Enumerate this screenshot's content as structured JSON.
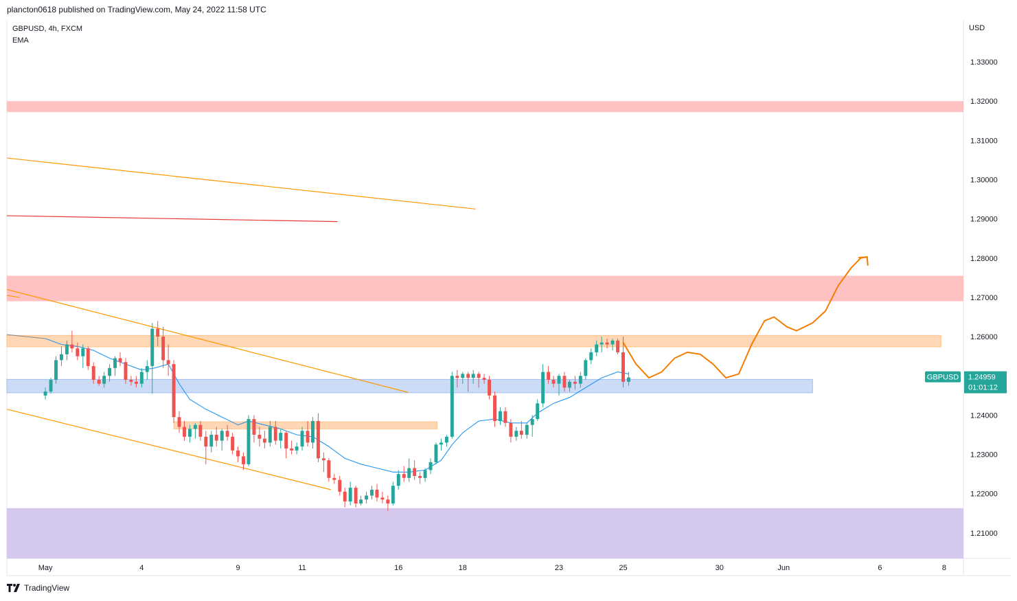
{
  "header": {
    "published_line": "plancton0618 published on TradingView.com, May 24, 2022 11:58 UTC"
  },
  "legend": {
    "symbol_line": "GBPUSD, 4h, FXCM",
    "indicator": "EMA"
  },
  "footer": {
    "brand": "TradingView",
    "logo_icon": "tradingview-logo-icon"
  },
  "colors": {
    "up": "#26a69a",
    "down": "#ef5350",
    "ema": "#2196f3",
    "resistance_zone": "#ffb7b7",
    "supply_zone": "#ffd1a8",
    "demand_zone": "#c5d7f5",
    "support_zone": "#d4c8ec",
    "trendline": "#ff9800",
    "red_line": "#e53935",
    "forecast": "#f57c00",
    "price_label": "#26a69a"
  },
  "chart_data": {
    "type": "candlestick",
    "symbol": "GBPUSD",
    "interval": "4h",
    "broker": "FXCM",
    "currency": "USD",
    "y_ticks": [
      "1.33000",
      "1.32000",
      "1.31000",
      "1.30000",
      "1.29000",
      "1.28000",
      "1.27000",
      "1.26000",
      "1.25000",
      "1.24000",
      "1.23000",
      "1.22000",
      "1.21000"
    ],
    "y_tick_values": [
      1.33,
      1.32,
      1.31,
      1.3,
      1.29,
      1.28,
      1.27,
      1.26,
      1.25,
      1.24,
      1.23,
      1.22,
      1.21
    ],
    "ylim": [
      1.2035,
      1.3405
    ],
    "x_ticks": [
      {
        "label": "May",
        "day": 0
      },
      {
        "label": "4",
        "day": 3
      },
      {
        "label": "9",
        "day": 6
      },
      {
        "label": "11",
        "day": 8
      },
      {
        "label": "16",
        "day": 11
      },
      {
        "label": "18",
        "day": 13
      },
      {
        "label": "23",
        "day": 16
      },
      {
        "label": "25",
        "day": 18
      },
      {
        "label": "30",
        "day": 21
      },
      {
        "label": "Jun",
        "day": 23
      },
      {
        "label": "6",
        "day": 26
      },
      {
        "label": "8",
        "day": 28
      }
    ],
    "x_range_days": [
      -1.2,
      28.6
    ],
    "candles": [
      [
        0.0,
        1.245,
        1.247,
        1.244,
        1.246
      ],
      [
        0.17,
        1.246,
        1.2495,
        1.2455,
        1.249
      ],
      [
        0.33,
        1.249,
        1.255,
        1.248,
        1.254
      ],
      [
        0.5,
        1.254,
        1.2575,
        1.2525,
        1.2555
      ],
      [
        0.67,
        1.2555,
        1.259,
        1.254,
        1.258
      ],
      [
        0.83,
        1.258,
        1.2615,
        1.256,
        1.257
      ],
      [
        1.0,
        1.257,
        1.2585,
        1.254,
        1.255
      ],
      [
        1.17,
        1.255,
        1.258,
        1.252,
        1.257
      ],
      [
        1.33,
        1.257,
        1.2575,
        1.2515,
        1.2525
      ],
      [
        1.5,
        1.2525,
        1.2535,
        1.248,
        1.249
      ],
      [
        1.67,
        1.249,
        1.25,
        1.2475,
        1.248
      ],
      [
        1.83,
        1.248,
        1.251,
        1.247,
        1.25
      ],
      [
        2.0,
        1.25,
        1.253,
        1.2485,
        1.252
      ],
      [
        2.17,
        1.252,
        1.255,
        1.25,
        1.2545
      ],
      [
        2.33,
        1.2545,
        1.256,
        1.2525,
        1.2535
      ],
      [
        2.5,
        1.2535,
        1.2545,
        1.248,
        1.249
      ],
      [
        2.67,
        1.249,
        1.25,
        1.2475,
        1.2485
      ],
      [
        2.83,
        1.2485,
        1.25,
        1.247,
        1.248
      ],
      [
        3.0,
        1.248,
        1.252,
        1.247,
        1.251
      ],
      [
        3.17,
        1.251,
        1.254,
        1.249,
        1.2525
      ],
      [
        3.33,
        1.2525,
        1.2635,
        1.2455,
        1.262
      ],
      [
        3.5,
        1.262,
        1.264,
        1.2575,
        1.26
      ],
      [
        3.67,
        1.26,
        1.2625,
        1.252,
        1.254
      ],
      [
        3.83,
        1.254,
        1.258,
        1.25,
        1.253
      ],
      [
        4.0,
        1.253,
        1.254,
        1.238,
        1.2395
      ],
      [
        4.17,
        1.2395,
        1.241,
        1.2355,
        1.237
      ],
      [
        4.33,
        1.237,
        1.2385,
        1.2335,
        1.2345
      ],
      [
        4.5,
        1.2345,
        1.2375,
        1.233,
        1.2365
      ],
      [
        4.67,
        1.2365,
        1.238,
        1.234,
        1.2375
      ],
      [
        4.83,
        1.2375,
        1.2385,
        1.2335,
        1.2345
      ],
      [
        5.0,
        1.2345,
        1.236,
        1.2275,
        1.232
      ],
      [
        5.17,
        1.232,
        1.236,
        1.2305,
        1.235
      ],
      [
        5.33,
        1.235,
        1.237,
        1.232,
        1.2335
      ],
      [
        5.5,
        1.2335,
        1.2365,
        1.231,
        1.236
      ],
      [
        5.67,
        1.236,
        1.2375,
        1.2335,
        1.2345
      ],
      [
        5.83,
        1.2345,
        1.2355,
        1.23,
        1.231
      ],
      [
        6.0,
        1.231,
        1.232,
        1.228,
        1.2295
      ],
      [
        6.17,
        1.2295,
        1.2305,
        1.226,
        1.2275
      ],
      [
        6.33,
        1.2275,
        1.24,
        1.227,
        1.239
      ],
      [
        6.5,
        1.239,
        1.24,
        1.233,
        1.235
      ],
      [
        6.67,
        1.235,
        1.237,
        1.232,
        1.234
      ],
      [
        6.83,
        1.234,
        1.236,
        1.2315,
        1.233
      ],
      [
        7.0,
        1.233,
        1.2385,
        1.232,
        1.237
      ],
      [
        7.17,
        1.237,
        1.2385,
        1.2325,
        1.2335
      ],
      [
        7.33,
        1.2335,
        1.2365,
        1.2315,
        1.2355
      ],
      [
        7.5,
        1.2355,
        1.236,
        1.229,
        1.2315
      ],
      [
        7.67,
        1.2315,
        1.2335,
        1.23,
        1.231
      ],
      [
        7.83,
        1.231,
        1.233,
        1.23,
        1.232
      ],
      [
        8.0,
        1.232,
        1.237,
        1.231,
        1.236
      ],
      [
        8.17,
        1.236,
        1.2385,
        1.232,
        1.233
      ],
      [
        8.33,
        1.233,
        1.2395,
        1.2315,
        1.2385
      ],
      [
        8.5,
        1.2385,
        1.2405,
        1.228,
        1.229
      ],
      [
        8.67,
        1.229,
        1.2305,
        1.2255,
        1.2285
      ],
      [
        8.83,
        1.2285,
        1.229,
        1.223,
        1.224
      ],
      [
        9.0,
        1.224,
        1.225,
        1.2225,
        1.2235
      ],
      [
        9.17,
        1.2235,
        1.2245,
        1.2195,
        1.2205
      ],
      [
        9.33,
        1.2205,
        1.2215,
        1.2165,
        1.218
      ],
      [
        9.5,
        1.218,
        1.223,
        1.217,
        1.2215
      ],
      [
        9.67,
        1.2215,
        1.222,
        1.2165,
        1.2175
      ],
      [
        9.83,
        1.2175,
        1.2195,
        1.217,
        1.2185
      ],
      [
        10.0,
        1.2185,
        1.2205,
        1.2175,
        1.2195
      ],
      [
        10.17,
        1.2195,
        1.222,
        1.2185,
        1.221
      ],
      [
        10.33,
        1.221,
        1.2225,
        1.218,
        1.219
      ],
      [
        10.5,
        1.219,
        1.2205,
        1.2175,
        1.2185
      ],
      [
        10.67,
        1.2185,
        1.2195,
        1.2155,
        1.2175
      ],
      [
        10.83,
        1.2175,
        1.223,
        1.217,
        1.222
      ],
      [
        11.0,
        1.222,
        1.226,
        1.221,
        1.225
      ],
      [
        11.17,
        1.225,
        1.227,
        1.223,
        1.224
      ],
      [
        11.33,
        1.224,
        1.229,
        1.223,
        1.2265
      ],
      [
        11.5,
        1.2265,
        1.2285,
        1.2235,
        1.2245
      ],
      [
        11.67,
        1.2245,
        1.2255,
        1.2225,
        1.224
      ],
      [
        11.83,
        1.224,
        1.2265,
        1.223,
        1.226
      ],
      [
        12.0,
        1.226,
        1.229,
        1.225,
        1.228
      ],
      [
        12.17,
        1.228,
        1.233,
        1.2275,
        1.2325
      ],
      [
        12.33,
        1.2325,
        1.234,
        1.231,
        1.233
      ],
      [
        12.5,
        1.233,
        1.235,
        1.232,
        1.2345
      ],
      [
        12.67,
        1.2345,
        1.251,
        1.234,
        1.25
      ],
      [
        12.83,
        1.25,
        1.2515,
        1.247,
        1.2495
      ],
      [
        13.0,
        1.2495,
        1.251,
        1.248,
        1.2505
      ],
      [
        13.17,
        1.2505,
        1.251,
        1.246,
        1.2495
      ],
      [
        13.33,
        1.2495,
        1.2515,
        1.248,
        1.2505
      ],
      [
        13.5,
        1.2505,
        1.251,
        1.247,
        1.2495
      ],
      [
        13.67,
        1.2495,
        1.2505,
        1.248,
        1.249
      ],
      [
        13.83,
        1.249,
        1.25,
        1.244,
        1.245
      ],
      [
        14.0,
        1.245,
        1.246,
        1.237,
        1.2385
      ],
      [
        14.17,
        1.2385,
        1.242,
        1.2375,
        1.241
      ],
      [
        14.33,
        1.241,
        1.242,
        1.237,
        1.238
      ],
      [
        14.5,
        1.238,
        1.239,
        1.233,
        1.2345
      ],
      [
        14.67,
        1.2345,
        1.237,
        1.2335,
        1.236
      ],
      [
        14.83,
        1.236,
        1.2385,
        1.234,
        1.235
      ],
      [
        15.0,
        1.235,
        1.238,
        1.234,
        1.2375
      ],
      [
        15.17,
        1.2375,
        1.24,
        1.2345,
        1.239
      ],
      [
        15.33,
        1.239,
        1.244,
        1.2385,
        1.243
      ],
      [
        15.5,
        1.243,
        1.253,
        1.242,
        1.251
      ],
      [
        15.67,
        1.251,
        1.2525,
        1.248,
        1.249
      ],
      [
        15.83,
        1.249,
        1.25,
        1.247,
        1.248
      ],
      [
        16.0,
        1.248,
        1.2505,
        1.245,
        1.25
      ],
      [
        16.17,
        1.25,
        1.251,
        1.246,
        1.247
      ],
      [
        16.33,
        1.247,
        1.249,
        1.246,
        1.2485
      ],
      [
        16.5,
        1.2485,
        1.25,
        1.2465,
        1.248
      ],
      [
        16.67,
        1.248,
        1.251,
        1.247,
        1.25
      ],
      [
        16.83,
        1.25,
        1.2545,
        1.249,
        1.254
      ],
      [
        17.0,
        1.254,
        1.257,
        1.253,
        1.256
      ],
      [
        17.17,
        1.256,
        1.259,
        1.255,
        1.258
      ],
      [
        17.33,
        1.258,
        1.26,
        1.256,
        1.2585
      ],
      [
        17.5,
        1.2585,
        1.2595,
        1.257,
        1.258
      ],
      [
        17.67,
        1.258,
        1.2595,
        1.2565,
        1.259
      ],
      [
        17.83,
        1.259,
        1.2595,
        1.2555,
        1.256
      ],
      [
        18.0,
        1.256,
        1.26,
        1.247,
        1.2485
      ],
      [
        18.17,
        1.2485,
        1.251,
        1.2475,
        1.2496
      ]
    ],
    "ema": [
      [
        0.0,
        1.2595
      ],
      [
        0.5,
        1.258
      ],
      [
        1.0,
        1.2575
      ],
      [
        1.5,
        1.2565
      ],
      [
        2.0,
        1.2545
      ],
      [
        2.5,
        1.253
      ],
      [
        3.0,
        1.2515
      ],
      [
        3.4,
        1.252
      ],
      [
        3.83,
        1.253
      ],
      [
        4.17,
        1.248
      ],
      [
        4.5,
        1.244
      ],
      [
        5.0,
        1.2415
      ],
      [
        5.5,
        1.2395
      ],
      [
        6.0,
        1.2375
      ],
      [
        6.33,
        1.2385
      ],
      [
        6.83,
        1.2375
      ],
      [
        7.33,
        1.2365
      ],
      [
        7.83,
        1.235
      ],
      [
        8.33,
        1.2345
      ],
      [
        8.83,
        1.232
      ],
      [
        9.33,
        1.229
      ],
      [
        9.83,
        1.2275
      ],
      [
        10.33,
        1.2265
      ],
      [
        10.83,
        1.2255
      ],
      [
        11.33,
        1.2255
      ],
      [
        11.83,
        1.226
      ],
      [
        12.33,
        1.2285
      ],
      [
        12.67,
        1.2325
      ],
      [
        13.0,
        1.2355
      ],
      [
        13.5,
        1.2385
      ],
      [
        14.0,
        1.239
      ],
      [
        14.5,
        1.238
      ],
      [
        15.0,
        1.238
      ],
      [
        15.33,
        1.2405
      ],
      [
        15.83,
        1.243
      ],
      [
        16.33,
        1.2445
      ],
      [
        16.83,
        1.247
      ],
      [
        17.33,
        1.2495
      ],
      [
        17.83,
        1.251
      ],
      [
        18.17,
        1.2505
      ]
    ],
    "zones": [
      {
        "kind": "resistance",
        "y1": 1.3172,
        "y2": 1.32,
        "x_start": -1.2,
        "x_end": 28.6
      },
      {
        "kind": "resistance",
        "y1": 1.269,
        "y2": 1.2755,
        "x_start": -1.2,
        "x_end": 28.6
      },
      {
        "kind": "supply",
        "y1": 1.2574,
        "y2": 1.2603,
        "x_start": -1.2,
        "x_end": 27.9
      },
      {
        "kind": "demand",
        "y1": 1.2457,
        "y2": 1.2491,
        "x_start": -1.2,
        "x_end": 23.9
      },
      {
        "kind": "supply",
        "y1": 1.2365,
        "y2": 1.2383,
        "x_start": 4.0,
        "x_end": 12.2
      },
      {
        "kind": "support",
        "y1": 1.2035,
        "y2": 1.2163,
        "x_start": -1.2,
        "x_end": 28.6
      }
    ],
    "lines": [
      {
        "kind": "trendline",
        "points": [
          [
            -1.2,
            1.3055
          ],
          [
            13.4,
            1.2925
          ]
        ]
      },
      {
        "kind": "red_line",
        "points": [
          [
            -1.2,
            1.2908
          ],
          [
            9.1,
            1.2893
          ]
        ]
      },
      {
        "kind": "trendline",
        "points": [
          [
            -1.2,
            1.272
          ],
          [
            11.3,
            1.2458
          ]
        ]
      },
      {
        "kind": "trendline",
        "points": [
          [
            -1.2,
            1.2415
          ],
          [
            8.9,
            1.221
          ]
        ]
      },
      {
        "kind": "trendline",
        "points": [
          [
            -1.2,
            1.2705
          ],
          [
            -0.8,
            1.27
          ]
        ]
      }
    ],
    "forecast_path": [
      [
        18.0,
        1.2585
      ],
      [
        18.4,
        1.253
      ],
      [
        18.8,
        1.2495
      ],
      [
        19.2,
        1.251
      ],
      [
        19.6,
        1.2545
      ],
      [
        20.0,
        1.256
      ],
      [
        20.4,
        1.2555
      ],
      [
        20.8,
        1.253
      ],
      [
        21.2,
        1.2495
      ],
      [
        21.6,
        1.2505
      ],
      [
        22.0,
        1.258
      ],
      [
        22.4,
        1.264
      ],
      [
        22.7,
        1.265
      ],
      [
        23.1,
        1.2625
      ],
      [
        23.4,
        1.2615
      ],
      [
        23.9,
        1.2635
      ],
      [
        24.3,
        1.2665
      ],
      [
        24.7,
        1.273
      ],
      [
        25.1,
        1.2775
      ],
      [
        25.4,
        1.28
      ]
    ],
    "forecast_arrow_tip": [
      25.6,
      1.2803
    ],
    "current_price": {
      "symbol_label": "GBPUSD",
      "price": "1.24959",
      "countdown": "01:01:12",
      "value": 1.24959
    }
  }
}
